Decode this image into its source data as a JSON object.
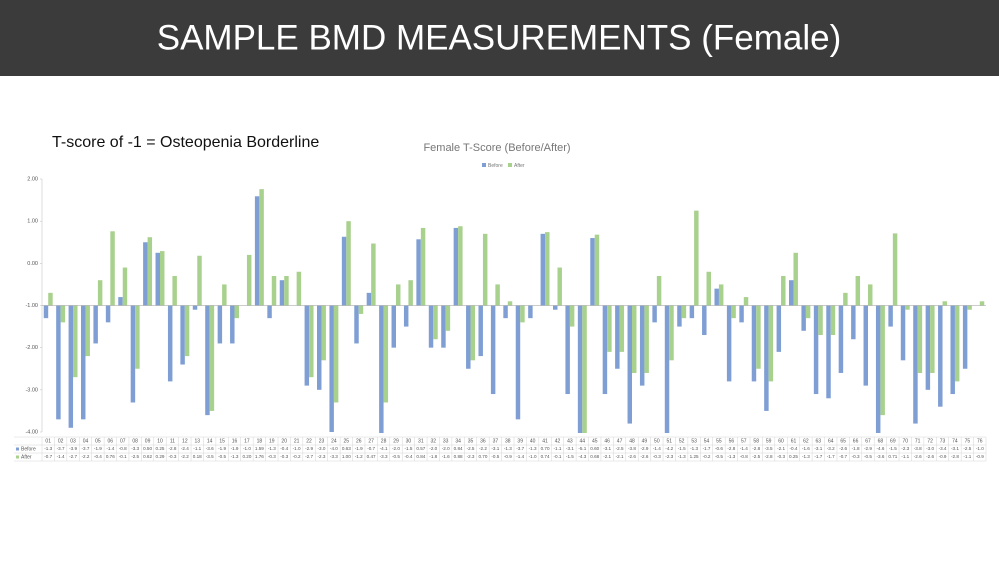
{
  "header": {
    "title": "SAMPLE BMD MEASUREMENTS (Female)"
  },
  "annotation": "T-score of -1 = Osteopenia Borderline",
  "chart_data": {
    "type": "bar",
    "title": "Female T-Score (Before/After)",
    "categories": [
      "01",
      "02",
      "03",
      "04",
      "05",
      "06",
      "07",
      "08",
      "09",
      "10",
      "11",
      "12",
      "13",
      "14",
      "15",
      "16",
      "17",
      "18",
      "19",
      "20",
      "21",
      "22",
      "23",
      "24",
      "25",
      "26",
      "27",
      "28",
      "29",
      "30",
      "31",
      "32",
      "33",
      "34",
      "35",
      "36",
      "37",
      "38",
      "39",
      "40",
      "41",
      "42",
      "43",
      "44",
      "45",
      "46",
      "47",
      "48",
      "49",
      "50",
      "51",
      "52",
      "53",
      "54",
      "55",
      "56",
      "57",
      "58",
      "59",
      "60",
      "61",
      "62",
      "63",
      "64",
      "65",
      "66",
      "67",
      "68",
      "69",
      "70",
      "71",
      "72",
      "73",
      "74",
      "75",
      "76"
    ],
    "series": [
      {
        "name": "Before",
        "color": "#7f9fd4",
        "values": [
          -1.3,
          -3.7,
          -3.9,
          -3.7,
          -1.9,
          -1.4,
          -0.8,
          -3.3,
          0.5,
          0.25,
          -2.8,
          -2.4,
          -1.1,
          -3.6,
          -1.9,
          -1.9,
          -1.0,
          1.59,
          -1.3,
          -0.4,
          -1.0,
          -2.9,
          -3.0,
          -4.0,
          0.63,
          -1.9,
          -0.7,
          -4.1,
          -2.0,
          -1.5,
          0.57,
          -2.0,
          -2.0,
          0.84,
          -2.5,
          -2.2,
          -3.1,
          -1.3,
          -3.7,
          -1.3,
          0.7,
          -1.1,
          -3.1,
          -5.1,
          0.6,
          -3.1,
          -2.5,
          -3.8,
          -2.9,
          -1.4,
          -4.2,
          -1.5,
          -1.3,
          -1.7,
          -0.6,
          -2.8,
          -1.4,
          -2.8,
          -3.5,
          -2.1,
          -0.4,
          -1.6,
          -3.1,
          -3.2,
          -2.6,
          -1.8,
          -2.9,
          -4.6,
          -1.5,
          -2.3,
          -3.8,
          -3.0,
          -3.4,
          -3.1,
          -2.5,
          -1.0
        ],
        "value_labels": [
          "-1.3",
          "-3.7",
          "-3.9",
          "-3.7",
          "-1.9",
          "-1.4",
          "-0.8",
          "-3.3",
          "0.50",
          "0.25",
          "-2.8",
          "-2.4",
          "-1.1",
          "-3.6",
          "-1.9",
          "-1.9",
          "-1.0",
          "1.59",
          "-1.3",
          "-0.4",
          "-1.0",
          "-2.9",
          "-3.0",
          "-4.0",
          "0.63",
          "-1.9",
          "-0.7",
          "-4.1",
          "-2.0",
          "-1.5",
          "0.57",
          "-2.0",
          "-2.0",
          "0.84",
          "-2.5",
          "-2.2",
          "-3.1",
          "-1.3",
          "-3.7",
          "-1.3",
          "0.70",
          "-1.1",
          "-3.1",
          "-5.1",
          "0.60",
          "-3.1",
          "-2.5",
          "-3.8",
          "-2.9",
          "-1.4",
          "-4.2",
          "-1.5",
          "-1.3",
          "-1.7",
          "-0.6",
          "-2.8",
          "-1.4",
          "-2.8",
          "-3.5",
          "-2.1",
          "-0.4",
          "-1.6",
          "-3.1",
          "-3.2",
          "-2.6",
          "-1.8",
          "-2.9",
          "-4.6",
          "-1.5",
          "-2.3",
          "-3.8",
          "-3.0",
          "-3.4",
          "-3.1",
          "-2.5",
          "-1.0"
        ]
      },
      {
        "name": "After",
        "color": "#a9d18e",
        "values": [
          -0.7,
          -1.4,
          -2.7,
          -2.2,
          -0.4,
          0.76,
          -0.1,
          -2.5,
          0.62,
          0.29,
          -0.3,
          -2.2,
          0.18,
          -3.5,
          -0.5,
          -1.3,
          0.2,
          1.76,
          -0.3,
          -0.3,
          -0.2,
          -2.7,
          -2.3,
          -3.3,
          1.0,
          -1.2,
          0.47,
          -3.3,
          -0.5,
          -0.4,
          0.84,
          -1.8,
          -1.6,
          0.88,
          -2.3,
          0.7,
          -0.5,
          -0.9,
          -1.4,
          -1.0,
          0.74,
          -0.1,
          -1.5,
          -4.3,
          0.68,
          -2.1,
          -2.1,
          -2.6,
          -2.6,
          -0.3,
          -2.3,
          -1.3,
          1.25,
          -0.2,
          -0.5,
          -1.3,
          -0.8,
          -2.5,
          -2.8,
          -0.3,
          0.25,
          -1.3,
          -1.7,
          -1.7,
          -0.7,
          -0.3,
          -0.5,
          -3.6,
          0.71,
          -1.1,
          -2.6,
          -2.6,
          -0.9,
          -2.8,
          -1.1,
          -0.9
        ],
        "value_labels": [
          "-0.7",
          "-1.4",
          "-2.7",
          "-2.2",
          "-0.4",
          "0.76",
          "-0.1",
          "-2.5",
          "0.62",
          "0.29",
          "-0.3",
          "-2.2",
          "0.18",
          "-3.5",
          "-0.5",
          "-1.3",
          "0.20",
          "1.76",
          "-0.3",
          "-0.3",
          "-0.2",
          "-2.7",
          "-2.3",
          "-3.3",
          "1.00",
          "-1.2",
          "0.47",
          "-3.3",
          "-0.5",
          "-0.4",
          "0.84",
          "-1.8",
          "-1.6",
          "0.88",
          "-2.3",
          "0.70",
          "-0.5",
          "-0.9",
          "-1.4",
          "-1.0",
          "0.74",
          "-0.1",
          "-1.5",
          "-4.3",
          "0.68",
          "-2.1",
          "-2.1",
          "-2.6",
          "-2.6",
          "-0.3",
          "-2.3",
          "-1.3",
          "1.25",
          "-0.2",
          "-0.5",
          "-1.3",
          "-0.8",
          "-2.5",
          "-2.8",
          "-0.3",
          "0.25",
          "-1.3",
          "-1.7",
          "-1.7",
          "-0.7",
          "-0.3",
          "-0.5",
          "-3.6",
          "0.71",
          "-1.1",
          "-2.6",
          "-2.6",
          "-0.9",
          "-2.8",
          "-1.1",
          "-0.9"
        ]
      }
    ],
    "ylim": [
      -4,
      2
    ],
    "yticks": [
      {
        "value": 2,
        "label": "2.00"
      },
      {
        "value": 1,
        "label": "1.00"
      },
      {
        "value": 0,
        "label": "0.00"
      },
      {
        "value": -1,
        "label": "-1.00"
      },
      {
        "value": -2,
        "label": "-2.00"
      },
      {
        "value": -3,
        "label": "-3.00"
      },
      {
        "value": -4,
        "label": "-4.00"
      }
    ],
    "baseline": -1,
    "grid": false,
    "legend": "top"
  }
}
